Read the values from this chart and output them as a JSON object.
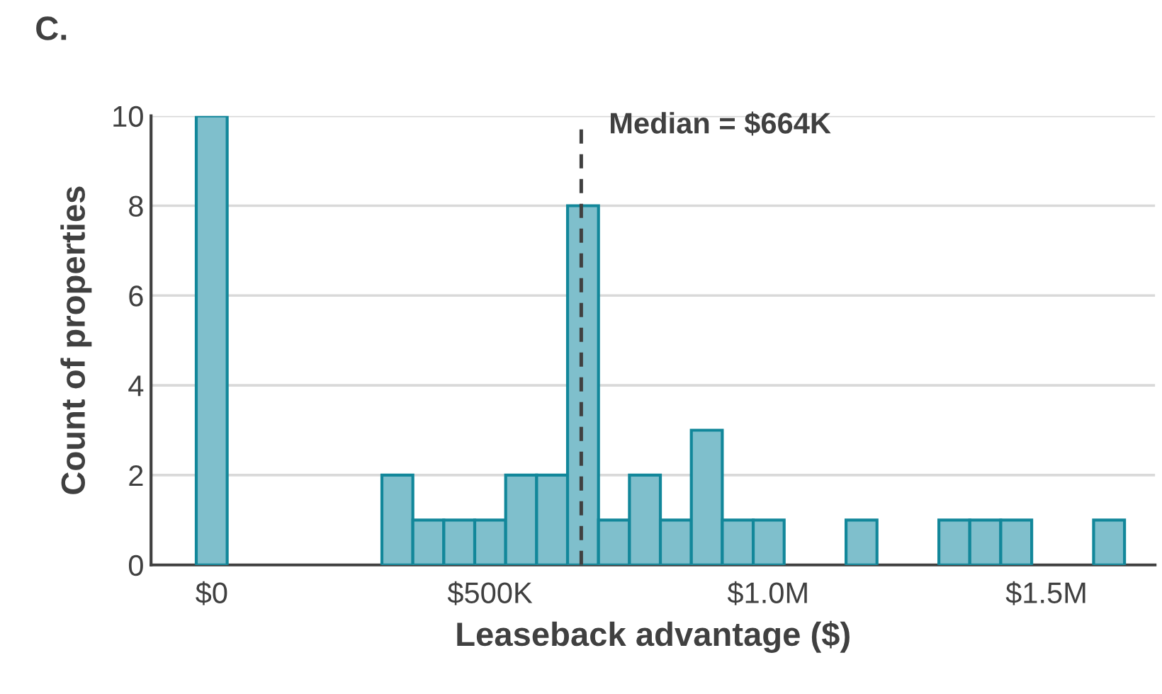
{
  "chart_data": {
    "type": "histogram",
    "title": "C.",
    "xlabel": "Leaseback advantage ($)",
    "ylabel": "Count of properties",
    "bins": [
      -27800,
      27800,
      83400,
      139000,
      194600,
      250200,
      305800,
      361400,
      417000,
      472600,
      528200,
      583800,
      639400,
      695000,
      750600,
      806200,
      861800,
      917400,
      973000,
      1028600,
      1084200,
      1139800,
      1195400,
      1251000,
      1306600,
      1362200,
      1417800,
      1473400,
      1529000,
      1584600,
      1640200
    ],
    "values": [
      10,
      0,
      0,
      0,
      0,
      0,
      2,
      1,
      1,
      1,
      2,
      2,
      8,
      1,
      2,
      1,
      3,
      1,
      1,
      0,
      0,
      1,
      0,
      0,
      1,
      1,
      1,
      0,
      0,
      1
    ],
    "color": "#7fbfcc",
    "xlim": [
      -109000,
      1695000
    ],
    "xticks": [
      {
        "value": 0,
        "label": "$0"
      },
      {
        "value": 500000,
        "label": "$500K"
      },
      {
        "value": 1000000,
        "label": "$1.0M"
      },
      {
        "value": 1500000,
        "label": "$1.5M"
      }
    ],
    "ylim": [
      0,
      10
    ],
    "yticks": [
      0,
      2,
      4,
      6,
      8,
      10
    ],
    "grid": "y",
    "ref_lines": [
      {
        "axis": "x",
        "value": 664000,
        "label": "Median = $664K",
        "color": "#404040",
        "line_style": "dashed"
      }
    ]
  }
}
